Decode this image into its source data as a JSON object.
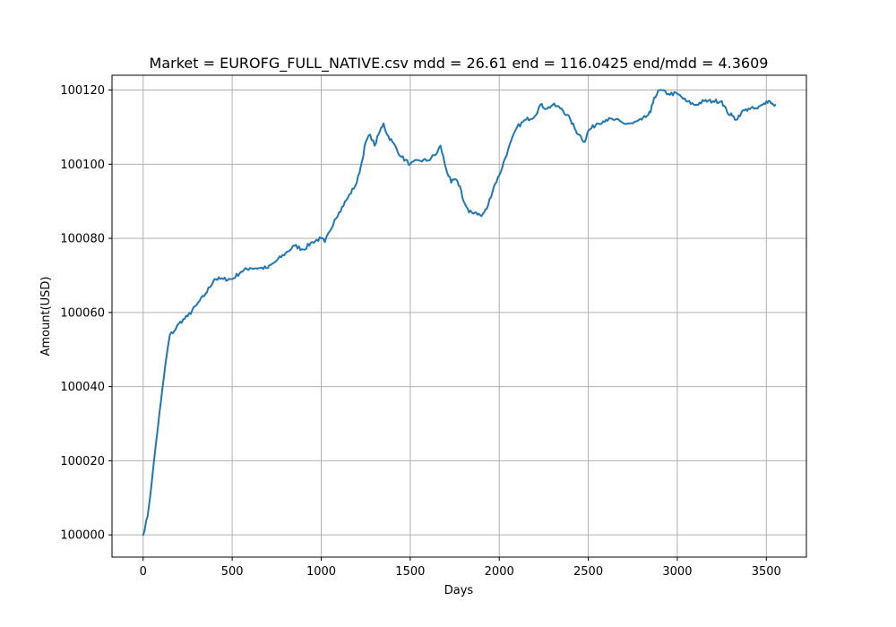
{
  "chart_data": {
    "type": "line",
    "title": "Market = EUROFG_FULL_NATIVE.csv mdd = 26.61 end = 116.0425 end/mdd = 4.3609",
    "xlabel": "Days",
    "ylabel": "Amount(USD)",
    "xlim": [
      -175,
      3725
    ],
    "ylim": [
      99994,
      100124
    ],
    "xticks": [
      0,
      500,
      1000,
      1500,
      2000,
      2500,
      3000,
      3500
    ],
    "xtick_labels": [
      "0",
      "500",
      "1000",
      "1500",
      "2000",
      "2500",
      "3000",
      "3500"
    ],
    "yticks": [
      100000,
      100020,
      100040,
      100060,
      100080,
      100100,
      100120
    ],
    "ytick_labels": [
      "100000",
      "100020",
      "100040",
      "100060",
      "100080",
      "100100",
      "100120"
    ],
    "grid": true,
    "color": "#1f77b4",
    "series": [
      {
        "x": [
          0,
          25,
          50,
          75,
          100,
          125,
          150,
          175,
          200,
          250,
          300,
          350,
          400,
          450,
          500,
          550,
          600,
          650,
          700,
          750,
          800,
          850,
          900,
          950,
          1000,
          1020,
          1050,
          1075,
          1100,
          1150,
          1200,
          1230,
          1250,
          1275,
          1300,
          1330,
          1350,
          1370,
          1400,
          1450,
          1500,
          1550,
          1600,
          1650,
          1670,
          1700,
          1730,
          1750,
          1780,
          1800,
          1830,
          1870,
          1900,
          1930,
          1970,
          2000,
          2050,
          2100,
          2150,
          2200,
          2230,
          2270,
          2300,
          2350,
          2400,
          2430,
          2450,
          2480,
          2500,
          2550,
          2600,
          2650,
          2700,
          2750,
          2800,
          2830,
          2850,
          2870,
          2900,
          2950,
          3000,
          3050,
          3100,
          3150,
          3200,
          3250,
          3280,
          3310,
          3330,
          3360,
          3400,
          3430,
          3450,
          3480,
          3500,
          3520,
          3540,
          3550
        ],
        "y": [
          100000,
          100005,
          100015,
          100026,
          100036,
          100046,
          100054,
          100055,
          100057,
          100059,
          100062,
          100065,
          100069,
          100069,
          100069,
          100071,
          100072,
          100072,
          100072,
          100074,
          100076,
          100078,
          100077,
          100079,
          100080,
          100079,
          100082,
          100085,
          100087,
          100091,
          100095,
          100101,
          100106,
          100108,
          100105,
          100109,
          100111,
          100108,
          100106,
          100102,
          100100,
          100101,
          100101,
          100103,
          100105,
          100099,
          100095,
          100096,
          100094,
          100090,
          100087,
          100087,
          100086,
          100088,
          100094,
          100097,
          100104,
          100110,
          100112,
          100113,
          100116,
          100115,
          100116,
          100115,
          100112,
          100109,
          100108,
          100106,
          100109,
          100111,
          100112,
          100112,
          100111,
          100111,
          100112,
          100113,
          100114,
          100118,
          100120,
          100119,
          100119,
          100117,
          100116,
          100117,
          100117,
          100117,
          100114,
          100113,
          100112,
          100114,
          100115,
          100115,
          100115,
          100116,
          100117,
          100117,
          100116,
          100116
        ]
      }
    ]
  }
}
